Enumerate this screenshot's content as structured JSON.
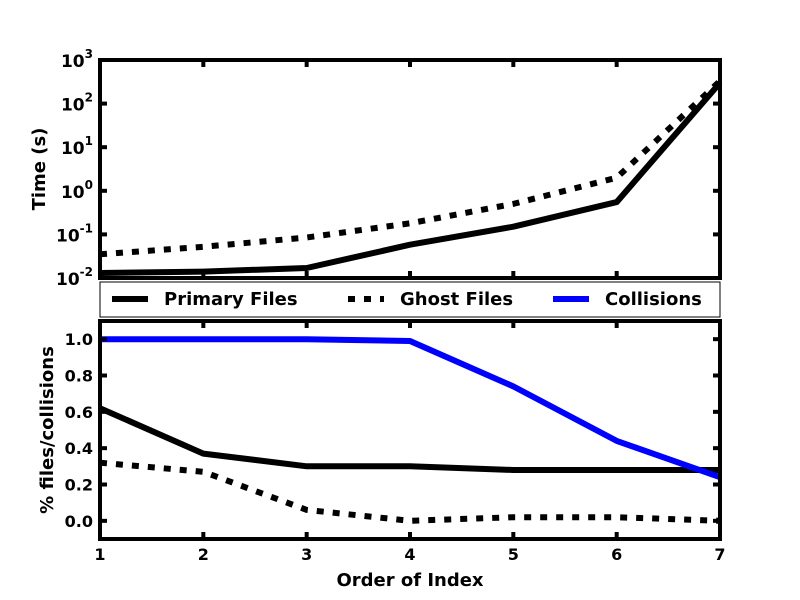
{
  "chart_data": [
    {
      "type": "line",
      "ylabel": "Time (s)",
      "yscale": "log",
      "ylim": [
        0.01,
        1000
      ],
      "yticks": [
        {
          "value": 0.01,
          "base": "10",
          "exp": "-2"
        },
        {
          "value": 0.1,
          "base": "10",
          "exp": "-1"
        },
        {
          "value": 1,
          "base": "10",
          "exp": "0"
        },
        {
          "value": 10,
          "base": "10",
          "exp": "1"
        },
        {
          "value": 100,
          "base": "10",
          "exp": "2"
        },
        {
          "value": 1000,
          "base": "10",
          "exp": "3"
        }
      ],
      "xlim": [
        1,
        7
      ],
      "x": [
        1,
        2,
        3,
        4,
        5,
        6,
        7
      ],
      "grid": false,
      "series": [
        {
          "name": "Primary Files",
          "style": "solid",
          "color": "#000000",
          "values": [
            0.013,
            0.014,
            0.017,
            0.058,
            0.15,
            0.55,
            300
          ]
        },
        {
          "name": "Ghost Files",
          "style": "dotted",
          "color": "#000000",
          "values": [
            0.035,
            0.052,
            0.085,
            0.18,
            0.5,
            2.0,
            330
          ]
        }
      ]
    },
    {
      "type": "line",
      "xlabel": "Order of Index",
      "ylabel": "% files/collisions",
      "ylim": [
        -0.1,
        1.1
      ],
      "yticks": [
        "0.0",
        "0.2",
        "0.4",
        "0.6",
        "0.8",
        "1.0"
      ],
      "xlim": [
        1,
        7
      ],
      "x": [
        1,
        2,
        3,
        4,
        5,
        6,
        7
      ],
      "xticks": [
        "1",
        "2",
        "3",
        "4",
        "5",
        "6",
        "7"
      ],
      "grid": false,
      "series": [
        {
          "name": "Primary Files",
          "style": "solid",
          "color": "#000000",
          "values": [
            0.62,
            0.37,
            0.3,
            0.3,
            0.28,
            0.28,
            0.28
          ]
        },
        {
          "name": "Ghost Files",
          "style": "dotted",
          "color": "#000000",
          "values": [
            0.32,
            0.27,
            0.06,
            0.0,
            0.02,
            0.02,
            0.0
          ]
        },
        {
          "name": "Collisions",
          "style": "solid",
          "color": "#0000ff",
          "values": [
            1.0,
            1.0,
            1.0,
            0.99,
            0.74,
            0.44,
            0.24
          ]
        }
      ]
    }
  ],
  "legend": {
    "placement": "between-panels",
    "entries": [
      {
        "label": "Primary Files",
        "style": "solid",
        "color": "#000000"
      },
      {
        "label": "Ghost Files",
        "style": "dotted",
        "color": "#000000"
      },
      {
        "label": "Collisions",
        "style": "solid",
        "color": "#0000ff"
      }
    ]
  }
}
